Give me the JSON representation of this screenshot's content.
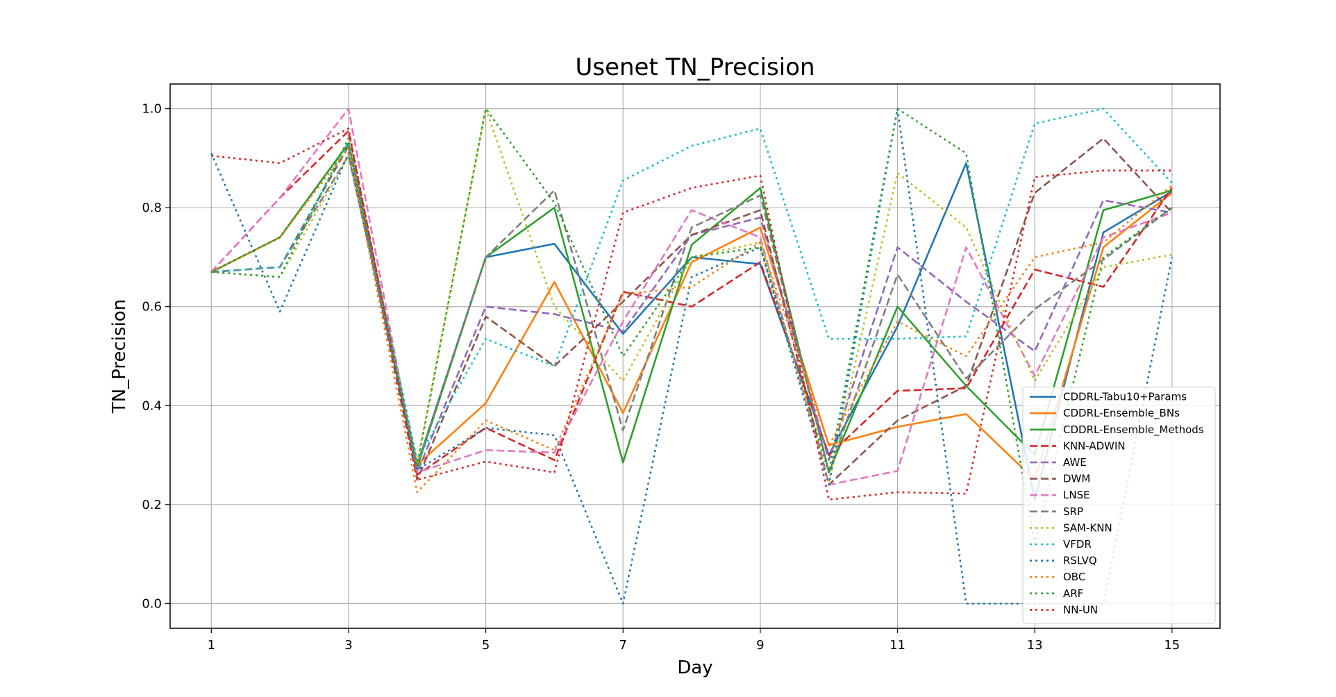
{
  "chart_data": {
    "type": "line",
    "title": "Usenet TN_Precision",
    "xlabel": "Day",
    "ylabel": "TN_Precision",
    "x": [
      1,
      2,
      3,
      4,
      5,
      6,
      7,
      8,
      9,
      10,
      11,
      12,
      13,
      14,
      15
    ],
    "xticks": [
      1,
      3,
      5,
      7,
      9,
      11,
      13,
      15
    ],
    "yticks": [
      0.0,
      0.2,
      0.4,
      0.6,
      0.8,
      1.0
    ],
    "xlim": [
      0.4,
      15.7
    ],
    "ylim": [
      -0.05,
      1.05
    ],
    "grid": true,
    "legend_position": "lower-right",
    "series": [
      {
        "name": "CDDRL-Tabu10+Params",
        "color": "#1f77b4",
        "dash": "solid",
        "values": [
          0.67,
          0.74,
          0.93,
          0.28,
          0.7,
          0.727,
          0.545,
          0.7,
          0.686,
          0.3,
          0.56,
          0.89,
          0.21,
          0.75,
          0.833
        ]
      },
      {
        "name": "CDDRL-Ensemble_BNs",
        "color": "#ff7f0e",
        "dash": "solid",
        "values": [
          0.67,
          0.74,
          0.93,
          0.28,
          0.405,
          0.65,
          0.385,
          0.69,
          0.76,
          0.32,
          0.357,
          0.383,
          0.25,
          0.72,
          0.83
        ]
      },
      {
        "name": "CDDRL-Ensemble_Methods",
        "color": "#2ca02c",
        "dash": "solid",
        "values": [
          0.67,
          0.74,
          0.93,
          0.275,
          0.7,
          0.8,
          0.285,
          0.725,
          0.84,
          0.265,
          0.6,
          0.44,
          0.3,
          0.795,
          0.835
        ]
      },
      {
        "name": "KNN-ADWIN",
        "color": "#d62728",
        "dash": "dashed",
        "values": [
          0.67,
          0.82,
          0.955,
          0.26,
          0.355,
          0.29,
          0.63,
          0.6,
          0.69,
          0.3,
          0.43,
          0.435,
          0.675,
          0.64,
          0.84
        ]
      },
      {
        "name": "AWE",
        "color": "#9467bd",
        "dash": "dashed",
        "values": [
          0.67,
          0.68,
          0.925,
          0.265,
          0.6,
          0.585,
          0.55,
          0.745,
          0.78,
          0.29,
          0.72,
          0.61,
          0.51,
          0.815,
          0.79
        ]
      },
      {
        "name": "DWM",
        "color": "#8c564b",
        "dash": "dashed",
        "values": [
          0.67,
          0.68,
          0.925,
          0.25,
          0.58,
          0.48,
          0.61,
          0.745,
          0.795,
          0.24,
          0.37,
          0.44,
          0.83,
          0.94,
          0.79
        ]
      },
      {
        "name": "LNSE",
        "color": "#e377c2",
        "dash": "dashed",
        "values": [
          0.67,
          0.82,
          1.0,
          0.265,
          0.31,
          0.305,
          0.57,
          0.795,
          0.74,
          0.24,
          0.268,
          0.72,
          0.46,
          0.74,
          0.79
        ]
      },
      {
        "name": "SRP",
        "color": "#7f7f7f",
        "dash": "dashed",
        "values": [
          0.67,
          0.68,
          0.905,
          0.28,
          0.7,
          0.835,
          0.35,
          0.76,
          0.825,
          0.265,
          0.665,
          0.455,
          0.595,
          0.695,
          0.8
        ]
      },
      {
        "name": "SAM-KNN",
        "color": "#bcbd22",
        "dash": "dotted",
        "values": [
          0.67,
          0.66,
          0.905,
          0.285,
          1.0,
          0.6,
          0.45,
          0.7,
          0.73,
          0.245,
          0.87,
          0.76,
          0.45,
          0.68,
          0.705
        ]
      },
      {
        "name": "VFDR",
        "color": "#17becf",
        "dash": "dotted",
        "values": [
          0.67,
          0.68,
          0.93,
          0.29,
          0.535,
          0.48,
          0.855,
          0.925,
          0.96,
          0.535,
          0.535,
          0.54,
          0.97,
          1.0,
          0.85
        ]
      },
      {
        "name": "RSLVQ",
        "color": "#1f77b4",
        "dash": "dotted",
        "values": [
          0.91,
          0.59,
          0.91,
          0.27,
          0.355,
          0.34,
          0.0,
          0.66,
          0.72,
          0.24,
          1.0,
          0.0,
          0.0,
          0.0,
          0.7
        ]
      },
      {
        "name": "OBC",
        "color": "#ff7f0e",
        "dash": "dotted",
        "values": [
          0.67,
          0.74,
          0.92,
          0.225,
          0.37,
          0.31,
          0.625,
          0.64,
          0.73,
          0.32,
          0.57,
          0.5,
          0.7,
          0.73,
          0.845
        ]
      },
      {
        "name": "ARF",
        "color": "#2ca02c",
        "dash": "dotted",
        "values": [
          0.67,
          0.66,
          0.94,
          0.28,
          1.0,
          0.81,
          0.5,
          0.7,
          0.72,
          0.265,
          1.0,
          0.91,
          0.12,
          0.7,
          0.8
        ]
      },
      {
        "name": "NN-UN",
        "color": "#d62728",
        "dash": "dotted",
        "values": [
          0.905,
          0.89,
          0.96,
          0.25,
          0.287,
          0.265,
          0.79,
          0.84,
          0.865,
          0.21,
          0.225,
          0.222,
          0.862,
          0.875,
          0.875
        ]
      }
    ]
  }
}
